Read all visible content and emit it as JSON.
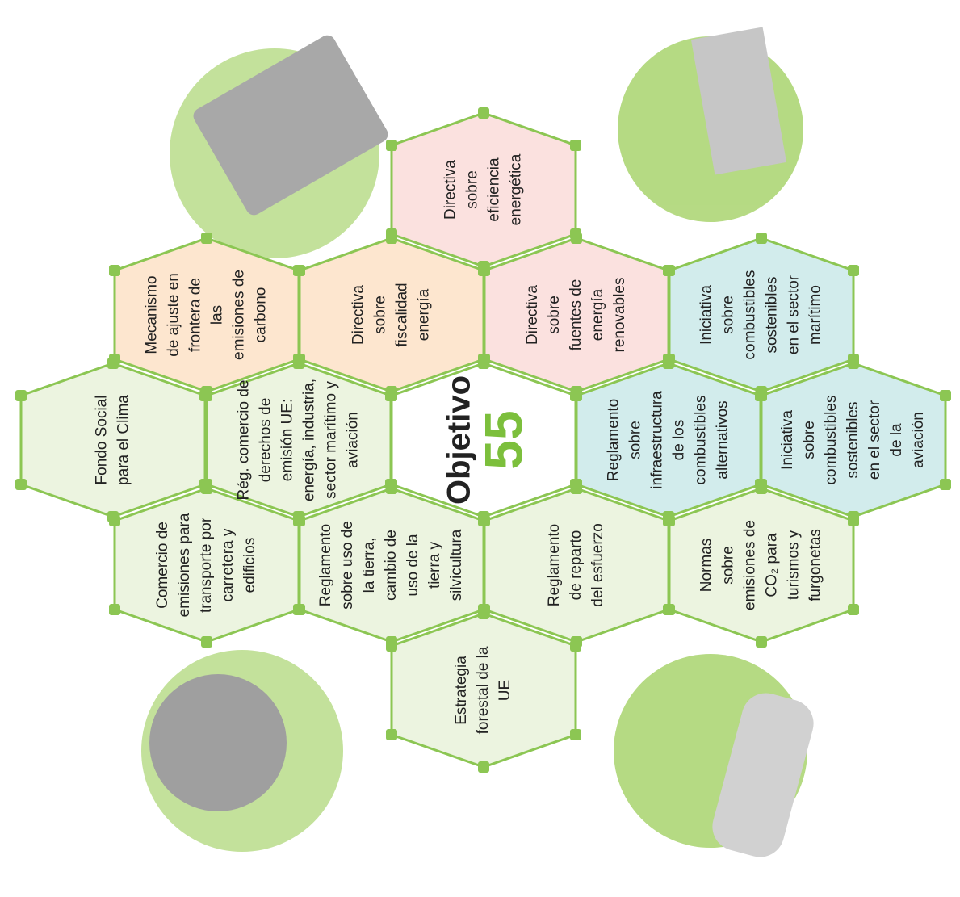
{
  "center": {
    "title": "Objetivo",
    "number": "55"
  },
  "nodes": [
    {
      "lines": [
        "Directiva",
        "sobre",
        "eficiencia",
        "energética"
      ],
      "color": "#fbe1df"
    },
    {
      "lines": [
        "Mecanismo",
        "de ajuste en",
        "frontera de",
        "las",
        "emisiones de",
        "carbono"
      ],
      "color": "#fde6cf"
    },
    {
      "lines": [
        "Directiva",
        "sobre",
        "fiscalidad",
        "energía"
      ],
      "color": "#fde6cf"
    },
    {
      "lines": [
        "Directiva",
        "sobre",
        "fuentes de",
        "energía",
        "renovables"
      ],
      "color": "#fbe1df"
    },
    {
      "lines": [
        "Iniciativa",
        "sobre",
        "combustibles",
        "sostenibles",
        "en el sector",
        "marítimo"
      ],
      "color": "#d2ecec"
    },
    {
      "lines": [
        "Fondo Social",
        "para el Clima"
      ],
      "color": "#ecf4e0"
    },
    {
      "lines": [
        "Rég. comercio de",
        "derechos de",
        "emisión UE:",
        "energía, industria,",
        "sector marítimo y",
        "aviación"
      ],
      "color": "#ecf4e0"
    },
    {
      "lines": [
        "Reglamento",
        "sobre",
        "infraestructura",
        "de los",
        "combustibles",
        "alternativos"
      ],
      "color": "#d2ecec"
    },
    {
      "lines": [
        "Iniciativa",
        "sobre",
        "combustibles",
        "sostenibles",
        "en el sector",
        "de la",
        "aviación"
      ],
      "color": "#d2ecec"
    },
    {
      "lines": [
        "Comercio de",
        "emisiones para",
        "transporte por",
        "carretera y",
        "edificios"
      ],
      "color": "#ecf4e0"
    },
    {
      "lines": [
        "Reglamento",
        "sobre uso de",
        "la tierra,",
        "cambio de",
        "uso de la",
        "tierra y",
        "silvicultura"
      ],
      "color": "#ecf4e0"
    },
    {
      "lines": [
        "Reglamento",
        "de reparto",
        "del esfuerzo"
      ],
      "color": "#ecf4e0"
    },
    {
      "lines": [
        "Normas",
        "sobre",
        "emisiones de",
        "CO₂ para",
        "turismos y",
        "furgonetas"
      ],
      "color": "#ecf4e0"
    },
    {
      "lines": [
        "Estrategia",
        "forestal de la",
        "UE"
      ],
      "color": "#ecf4e0"
    }
  ]
}
